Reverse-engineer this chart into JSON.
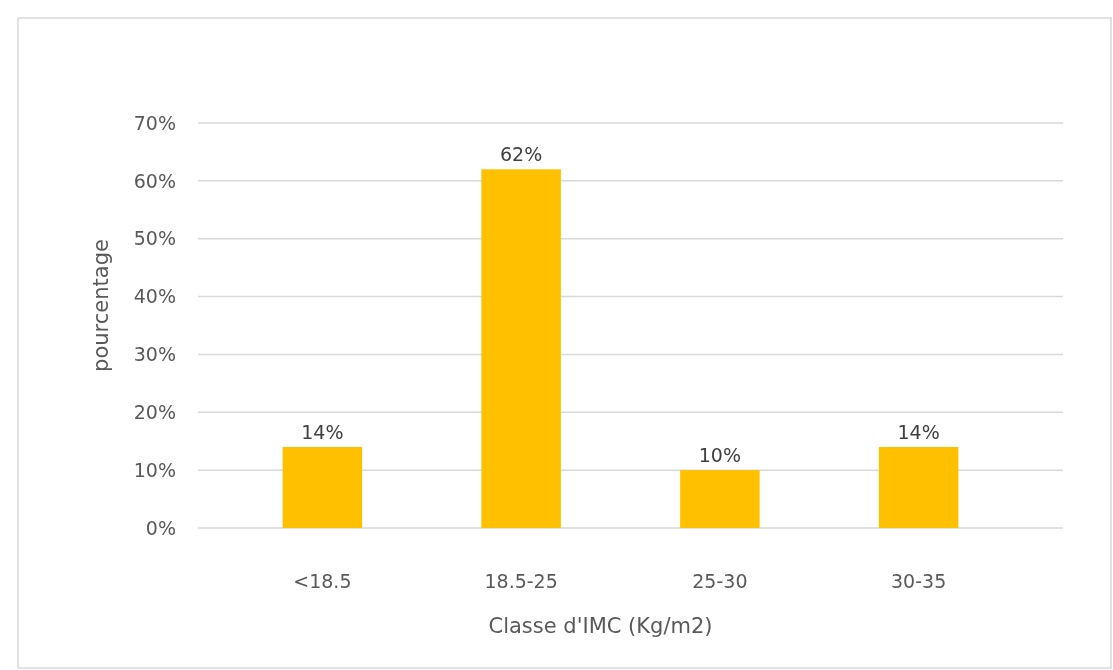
{
  "chart_data": {
    "type": "bar",
    "xlabel": "Classe d'IMC (Kg/m2)",
    "ylabel": "pourcentage",
    "categories": [
      "<18.5",
      "18.5-25",
      "25-30",
      "30-35"
    ],
    "values": [
      14,
      62,
      10,
      14
    ],
    "color": "#ffc000",
    "value_labels": [
      "14%",
      "62%",
      "10%",
      "14%"
    ],
    "ylim": [
      0,
      70
    ],
    "yticks": [
      {
        "value": 0,
        "label": "0%"
      },
      {
        "value": 10,
        "label": "10%"
      },
      {
        "value": 20,
        "label": "20%"
      },
      {
        "value": 30,
        "label": "30%"
      },
      {
        "value": 40,
        "label": "40%"
      },
      {
        "value": 50,
        "label": "50%"
      },
      {
        "value": 60,
        "label": "60%"
      },
      {
        "value": 70,
        "label": "70%"
      }
    ],
    "grid": "y"
  }
}
